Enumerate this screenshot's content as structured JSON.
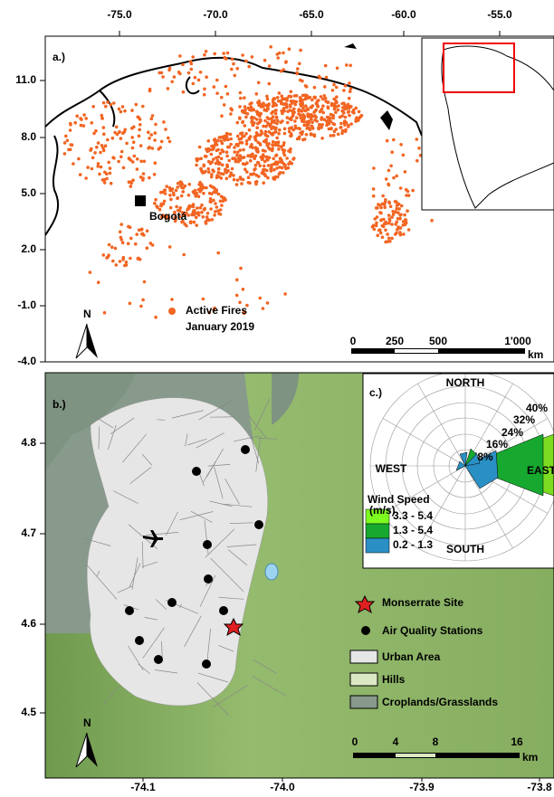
{
  "panel_a": {
    "label": "a.)",
    "x_ticks": [
      "-75.0",
      "-70.0",
      "-65.0",
      "-60.0",
      "-55.0"
    ],
    "y_ticks": [
      "11.0",
      "8.0",
      "5.0",
      "2.0",
      "-1.0",
      "-4.0"
    ],
    "city": "Bogotá",
    "legend": [
      "Active Fires",
      "January 2019"
    ],
    "north": "N",
    "scale": [
      "0",
      "250",
      "500",
      "1'000"
    ],
    "scale_unit": "km"
  },
  "panel_b": {
    "label": "b.)",
    "x_ticks": [
      "-74.1",
      "-74.0",
      "-73.9",
      "-73.8"
    ],
    "y_ticks": [
      "4.8",
      "4.7",
      "4.6",
      "4.5"
    ],
    "legend": [
      "Monserrate Site",
      "Air Quality Stations",
      "Urban Area",
      "Hills",
      "Croplands/Grasslands"
    ],
    "north": "N",
    "scale": [
      "0",
      "4",
      "8",
      "16"
    ],
    "scale_unit": "km"
  },
  "panel_c": {
    "label": "c.)",
    "directions": [
      "NORTH",
      "WEST",
      "EAST",
      "SOUTH"
    ],
    "rings": [
      "8%",
      "16%",
      "24%",
      "32%",
      "40%"
    ],
    "legend_title": "Wind Speed",
    "legend_unit": "(m/s)",
    "bins": [
      "3.3 - 5.4",
      "1.3 - 5.4",
      "0.2 - 1.3"
    ]
  }
}
